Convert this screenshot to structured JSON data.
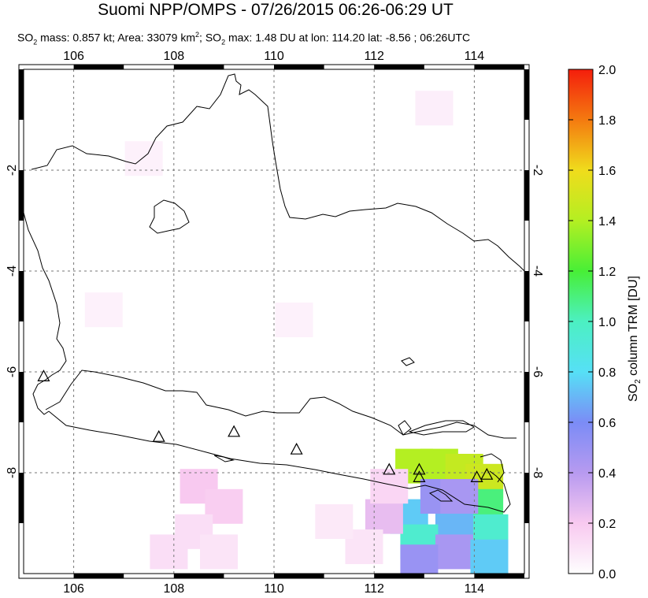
{
  "title": "Suomi NPP/OMPS - 07/26/2015 06:26-06:29 UT",
  "subtitle": {
    "so2_prefix": "SO",
    "so2_sub": "2",
    "mass_text": " mass: 0.857 kt; Area: 33079 km",
    "area_sup": "2",
    "sep_text": "; SO",
    "max_sub": "2",
    "max_text": " max: 1.48 DU at lon: 114.20 lat: -8.56 ; 06:26UTC"
  },
  "map": {
    "lon_range": [
      105,
      115
    ],
    "lat_range": [
      -10,
      0
    ],
    "lon_ticks": [
      "106",
      "108",
      "110",
      "112",
      "114"
    ],
    "lat_ticks": [
      "-2",
      "-4",
      "-6",
      "-8"
    ],
    "volcano_markers": [
      {
        "lon": 105.4,
        "lat": -6.1
      },
      {
        "lon": 107.7,
        "lat": -7.3
      },
      {
        "lon": 109.2,
        "lat": -7.2
      },
      {
        "lon": 110.45,
        "lat": -7.55
      },
      {
        "lon": 112.3,
        "lat": -7.95
      },
      {
        "lon": 112.9,
        "lat": -7.95
      },
      {
        "lon": 112.9,
        "lat": -8.1
      },
      {
        "lon": 114.05,
        "lat": -8.1
      },
      {
        "lon": 114.25,
        "lat": -8.05
      }
    ],
    "so2_cells": [
      {
        "lon": 112.8,
        "lat": -7.9,
        "du": 1.4
      },
      {
        "lon": 113.3,
        "lat": -7.9,
        "du": 1.4
      },
      {
        "lon": 113.8,
        "lat": -8.0,
        "du": 1.45
      },
      {
        "lon": 114.2,
        "lat": -8.2,
        "du": 1.48
      },
      {
        "lon": 114.2,
        "lat": -8.7,
        "du": 1.1
      },
      {
        "lon": 114.3,
        "lat": -9.2,
        "du": 0.95
      },
      {
        "lon": 113.6,
        "lat": -9.1,
        "du": 0.7
      },
      {
        "lon": 112.7,
        "lat": -8.9,
        "du": 0.75
      },
      {
        "lon": 112.9,
        "lat": -9.4,
        "du": 0.95
      },
      {
        "lon": 113.6,
        "lat": -9.6,
        "du": 0.45
      },
      {
        "lon": 114.3,
        "lat": -9.7,
        "du": 0.75
      },
      {
        "lon": 112.9,
        "lat": -9.8,
        "du": 0.5
      },
      {
        "lon": 113.3,
        "lat": -8.5,
        "du": 0.5
      },
      {
        "lon": 113.7,
        "lat": -8.5,
        "du": 0.45
      },
      {
        "lon": 112.2,
        "lat": -8.9,
        "du": 0.25
      },
      {
        "lon": 112.3,
        "lat": -8.3,
        "du": 0.15
      },
      {
        "lon": 108.5,
        "lat": -8.3,
        "du": 0.2
      },
      {
        "lon": 109.0,
        "lat": -8.7,
        "du": 0.18
      },
      {
        "lon": 108.4,
        "lat": -9.2,
        "du": 0.12
      },
      {
        "lon": 107.9,
        "lat": -9.6,
        "du": 0.12
      },
      {
        "lon": 108.9,
        "lat": -9.6,
        "du": 0.1
      },
      {
        "lon": 111.8,
        "lat": -9.5,
        "du": 0.1
      },
      {
        "lon": 111.2,
        "lat": -9.0,
        "du": 0.08
      },
      {
        "lon": 113.2,
        "lat": -0.8,
        "du": 0.06
      },
      {
        "lon": 107.4,
        "lat": -1.8,
        "du": 0.05
      },
      {
        "lon": 106.6,
        "lat": -4.8,
        "du": 0.05
      },
      {
        "lon": 110.4,
        "lat": -5.0,
        "du": 0.05
      }
    ]
  },
  "colorbar": {
    "title_prefix": "SO",
    "title_sub": "2",
    "title_suffix": " column TRM [DU]",
    "ticks": [
      "2.0",
      "1.8",
      "1.6",
      "1.4",
      "1.2",
      "1.0",
      "0.8",
      "0.6",
      "0.4",
      "0.2",
      "0.0"
    ],
    "min": 0,
    "max": 2,
    "colors": [
      "#fefefe",
      "#f8c9f0",
      "#b79af0",
      "#7b8cf6",
      "#56e0f6",
      "#4cf0c2",
      "#48ef36",
      "#b4ef22",
      "#f0dc1c",
      "#f47a10",
      "#f41e0c"
    ]
  }
}
